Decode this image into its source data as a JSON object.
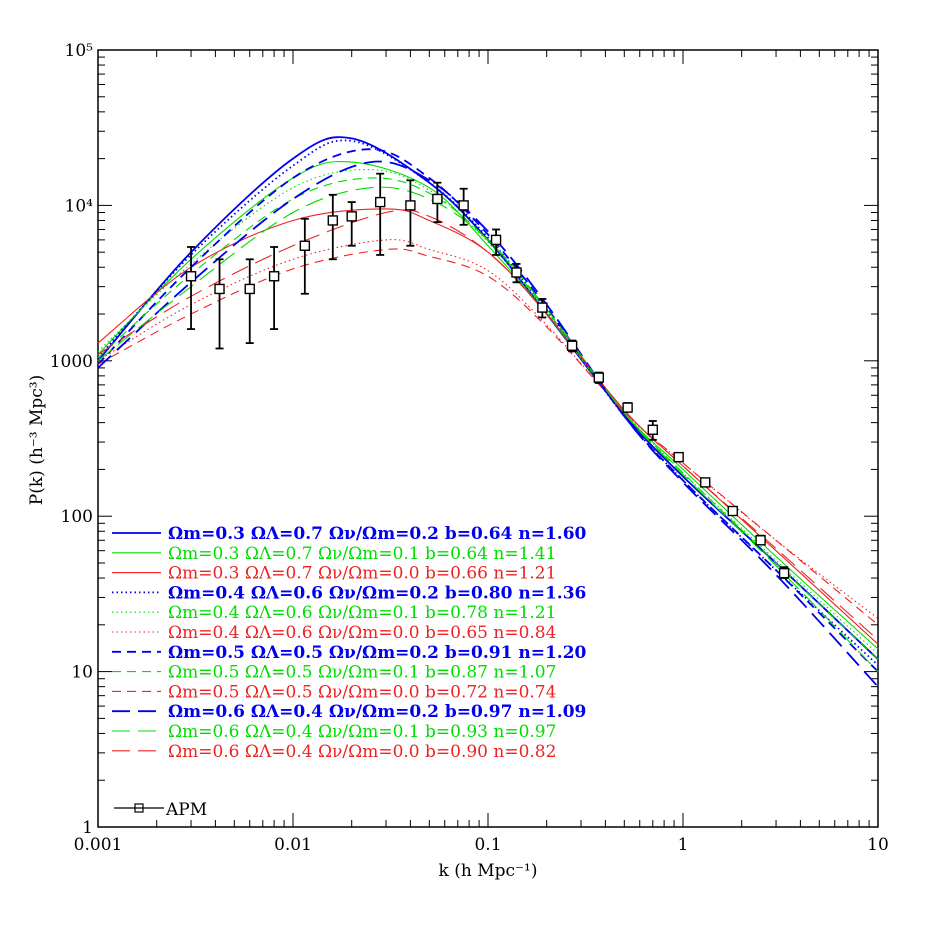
{
  "chart_data": {
    "type": "line",
    "title": "",
    "xlabel": "k (h Mpc⁻¹)",
    "ylabel": "P(k) (h⁻³ Mpc³)",
    "xscale": "log",
    "yscale": "log",
    "xlim": [
      0.001,
      10
    ],
    "ylim": [
      1,
      100000
    ],
    "x_tick_labels": [
      "0.001",
      "0.01",
      "0.1",
      "1",
      "10"
    ],
    "y_tick_labels": [
      "1",
      "10",
      "100",
      "1000",
      "10⁴",
      "10⁵"
    ],
    "grid": false,
    "legend_position": "lower-left",
    "colors": {
      "blue": "#0000ee",
      "green": "#00dd00",
      "red": "#ee2222",
      "black": "#000000"
    },
    "series": [
      {
        "name": "Ωm=0.3 ΩΛ=0.7 Ων/Ωm=0.2 b=0.64 n=1.60",
        "color": "blue",
        "dash": "solid",
        "bold": true,
        "x": [
          0.001,
          0.003,
          0.01,
          0.02,
          0.05,
          0.1,
          0.2,
          0.5,
          1,
          3,
          10
        ],
        "y": [
          1000,
          5000,
          20000,
          27000,
          14000,
          6000,
          2000,
          450,
          180,
          50,
          12
        ]
      },
      {
        "name": "Ωm=0.3 ΩΛ=0.7 Ων/Ωm=0.1 b=0.64 n=1.41",
        "color": "green",
        "dash": "solid",
        "bold": false,
        "x": [
          0.001,
          0.003,
          0.01,
          0.02,
          0.05,
          0.1,
          0.2,
          0.5,
          1,
          3,
          10
        ],
        "y": [
          1100,
          4500,
          15000,
          19000,
          13000,
          5500,
          2000,
          460,
          200,
          55,
          14
        ]
      },
      {
        "name": "Ωm=0.3 ΩΛ=0.7 Ων/Ωm=0.0 b=0.66 n=1.21",
        "color": "red",
        "dash": "solid",
        "bold": false,
        "x": [
          0.001,
          0.003,
          0.01,
          0.03,
          0.05,
          0.1,
          0.2,
          0.5,
          1,
          3,
          10
        ],
        "y": [
          1300,
          4000,
          8000,
          9500,
          8000,
          5000,
          2000,
          480,
          210,
          60,
          15
        ]
      },
      {
        "name": "Ωm=0.4 ΩΛ=0.6 Ων/Ωm=0.2 b=0.80 n=1.36",
        "color": "blue",
        "dash": "dotted",
        "bold": true,
        "x": [
          0.001,
          0.003,
          0.01,
          0.02,
          0.05,
          0.1,
          0.2,
          0.5,
          1,
          3,
          10
        ],
        "y": [
          1050,
          4800,
          18000,
          26000,
          14000,
          6200,
          2100,
          440,
          170,
          45,
          11
        ]
      },
      {
        "name": "Ωm=0.4 ΩΛ=0.6 Ων/Ωm=0.1 b=0.78 n=1.21",
        "color": "green",
        "dash": "dotted",
        "bold": false,
        "x": [
          0.001,
          0.003,
          0.01,
          0.025,
          0.05,
          0.1,
          0.2,
          0.5,
          1,
          3,
          10
        ],
        "y": [
          1150,
          4200,
          13000,
          17000,
          12500,
          5800,
          2050,
          470,
          190,
          52,
          13
        ]
      },
      {
        "name": "Ωm=0.4 ΩΛ=0.6 Ων/Ωm=0.0 b=0.65 n=0.84",
        "color": "red",
        "dash": "dotted",
        "bold": false,
        "x": [
          0.001,
          0.003,
          0.01,
          0.03,
          0.05,
          0.1,
          0.2,
          0.5,
          1,
          3,
          10
        ],
        "y": [
          1000,
          2300,
          4500,
          6000,
          5200,
          3800,
          1700,
          470,
          220,
          70,
          22
        ]
      },
      {
        "name": "Ωm=0.5 ΩΛ=0.5 Ων/Ωm=0.2 b=0.91 n=1.20",
        "color": "blue",
        "dash": "dashed",
        "bold": true,
        "x": [
          0.001,
          0.003,
          0.01,
          0.025,
          0.05,
          0.1,
          0.2,
          0.5,
          1,
          3,
          10
        ],
        "y": [
          950,
          4000,
          15000,
          23000,
          15000,
          6500,
          2200,
          440,
          170,
          45,
          10
        ]
      },
      {
        "name": "Ωm=0.5 ΩΛ=0.5 Ων/Ωm=0.1 b=0.87 n=1.07",
        "color": "green",
        "dash": "dashed",
        "bold": false,
        "x": [
          0.001,
          0.003,
          0.01,
          0.025,
          0.05,
          0.1,
          0.2,
          0.5,
          1,
          3,
          10
        ],
        "y": [
          1050,
          3600,
          11000,
          15000,
          12000,
          6000,
          2100,
          460,
          190,
          50,
          12
        ]
      },
      {
        "name": "Ωm=0.5 ΩΛ=0.5 Ων/Ωm=0.0 b=0.72 n=0.74",
        "color": "red",
        "dash": "dashed",
        "bold": false,
        "x": [
          0.001,
          0.003,
          0.01,
          0.03,
          0.05,
          0.1,
          0.2,
          0.5,
          1,
          3,
          10
        ],
        "y": [
          950,
          2000,
          3900,
          5200,
          4700,
          3500,
          1650,
          470,
          220,
          70,
          20
        ]
      },
      {
        "name": "Ωm=0.6 ΩΛ=0.4 Ων/Ωm=0.2 b=0.97 n=1.09",
        "color": "blue",
        "dash": "longdash",
        "bold": true,
        "x": [
          0.001,
          0.003,
          0.01,
          0.025,
          0.05,
          0.1,
          0.2,
          0.5,
          1,
          3,
          10
        ],
        "y": [
          900,
          3200,
          11000,
          19000,
          14500,
          6800,
          2300,
          440,
          165,
          42,
          8
        ]
      },
      {
        "name": "Ωm=0.6 ΩΛ=0.4 Ων/Ωm=0.1 b=0.93 n=0.97",
        "color": "green",
        "dash": "longdash",
        "bold": false,
        "x": [
          0.001,
          0.003,
          0.01,
          0.025,
          0.05,
          0.1,
          0.2,
          0.5,
          1,
          3,
          10
        ],
        "y": [
          1000,
          3000,
          9000,
          13000,
          11000,
          6000,
          2150,
          460,
          185,
          48,
          10
        ]
      },
      {
        "name": "Ωm=0.6 ΩΛ=0.4 Ων/Ωm=0.0 b=0.90 n=0.82",
        "color": "red",
        "dash": "longdash",
        "bold": false,
        "x": [
          0.001,
          0.003,
          0.01,
          0.03,
          0.05,
          0.1,
          0.2,
          0.5,
          1,
          3,
          10
        ],
        "y": [
          1100,
          2600,
          5500,
          9000,
          8500,
          5000,
          2000,
          480,
          210,
          62,
          16
        ]
      }
    ],
    "apm": {
      "name": "APM",
      "k": [
        0.003,
        0.0042,
        0.006,
        0.008,
        0.0115,
        0.016,
        0.02,
        0.028,
        0.04,
        0.055,
        0.075,
        0.11,
        0.14,
        0.19,
        0.27,
        0.37,
        0.52,
        0.7,
        0.95,
        1.3,
        1.8,
        2.5,
        3.3
      ],
      "p": [
        3500,
        2900,
        2900,
        3500,
        5500,
        8000,
        8500,
        10500,
        10000,
        11000,
        10000,
        6000,
        3700,
        2200,
        1250,
        780,
        500,
        360,
        240,
        165,
        108,
        70,
        43
      ],
      "err_lo": [
        1600,
        1200,
        1300,
        1600,
        2700,
        4500,
        5500,
        4800,
        5500,
        7800,
        7500,
        4800,
        3200,
        1900,
        1150,
        720,
        470,
        310,
        225,
        155,
        102,
        66,
        40
      ],
      "err_hi": [
        5400,
        4500,
        4500,
        5400,
        8200,
        11700,
        10500,
        16000,
        14500,
        14000,
        12800,
        7000,
        4200,
        2500,
        1350,
        840,
        535,
        410,
        255,
        175,
        114,
        75,
        47
      ]
    }
  }
}
